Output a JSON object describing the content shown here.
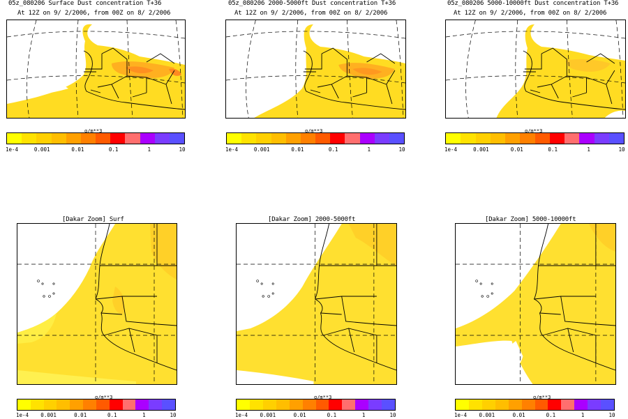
{
  "scale": {
    "unit": "g/m**3",
    "colors": [
      "#ffff00",
      "#ffe200",
      "#ffd000",
      "#ffbe00",
      "#ffa000",
      "#ff8000",
      "#ff5a00",
      "#ff0000",
      "#ff6e6e",
      "#aa00ff",
      "#7a3cff",
      "#5a50ff"
    ],
    "tick_labels": [
      "1e-4",
      "0.001",
      "0.01",
      "0.1",
      "1",
      "10"
    ]
  },
  "panels": [
    {
      "title": "05z_080206 Surface Dust concentration T+36",
      "subtitle": "At 12Z on 9/ 2/2006, from 00Z on 8/ 2/2006",
      "view": "regional"
    },
    {
      "title": "05z_080206 2000-5000ft Dust concentration T+36",
      "subtitle": "At 12Z on 9/ 2/2006, from 00Z on 8/ 2/2006",
      "view": "regional"
    },
    {
      "title": "05z_080206 5000-10000ft Dust concentration T+36",
      "subtitle": "At 12Z on 9/ 2/2006, from 00Z on 8/ 2/2006",
      "view": "regional"
    },
    {
      "title": "[Dakar Zoom] Surf",
      "subtitle": "",
      "view": "dakar"
    },
    {
      "title": "[Dakar Zoom] 2000-5000ft",
      "subtitle": "",
      "view": "dakar"
    },
    {
      "title": "[Dakar Zoom] 5000-10000ft",
      "subtitle": "",
      "view": "dakar"
    }
  ]
}
